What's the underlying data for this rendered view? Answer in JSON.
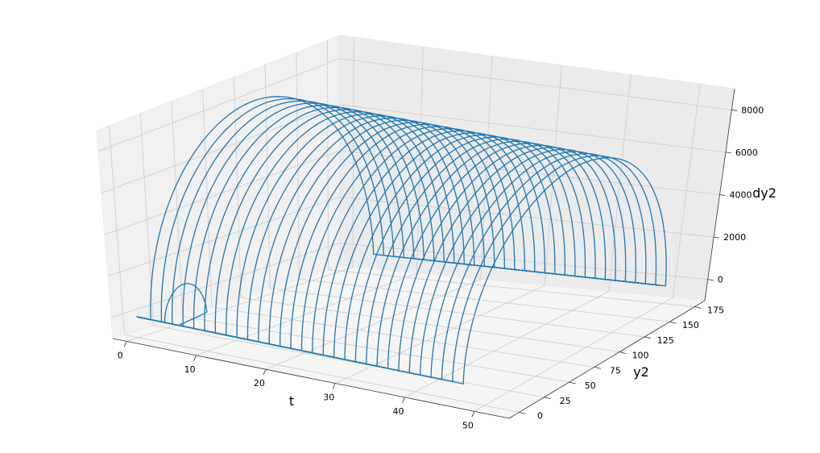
{
  "chart_data": {
    "type": "line",
    "projection": "3d",
    "title": "",
    "xlabel": "t",
    "ylabel": "y2",
    "zlabel": "dy2",
    "xlim": [
      -2,
      55
    ],
    "ylim": [
      -10,
      185
    ],
    "zlim": [
      -1000,
      9000
    ],
    "xticks": [
      "0",
      "10",
      "20",
      "30",
      "40",
      "50"
    ],
    "yticks": [
      "0",
      "25",
      "50",
      "75",
      "100",
      "125",
      "150",
      "175"
    ],
    "zticks": [
      "0",
      "2000",
      "4000",
      "6000",
      "8000"
    ],
    "grid": true,
    "series_color": "#1f77b4",
    "curve_family": {
      "count": 30,
      "t_start_first": 2,
      "t_start_step": 1.55,
      "peak_y2": 170,
      "peak_dy2": 8600,
      "plateau_width": 1.3,
      "ramp_width": 2.6,
      "t_end": 50,
      "first_curve_peak_y2": 30,
      "first_curve_peak_dy2": 1600
    }
  }
}
